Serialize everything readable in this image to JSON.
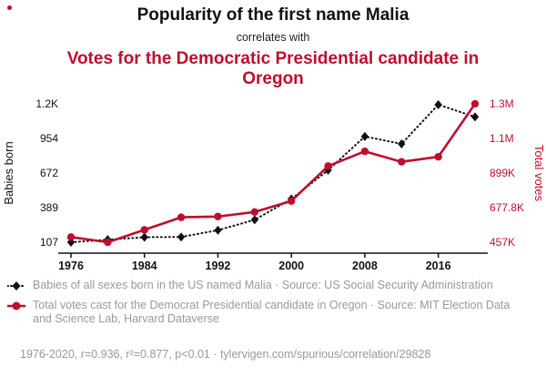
{
  "header": {
    "title": "Popularity of the first name Malia",
    "subtitle": "correlates with",
    "title2": "Votes for the Democratic Presidential candidate in Oregon"
  },
  "colors": {
    "accent": "#c00d2d",
    "series1": "#111111",
    "muted": "#999999"
  },
  "chart_data": {
    "type": "line",
    "x": [
      1976,
      1980,
      1984,
      1988,
      1992,
      1996,
      2000,
      2004,
      2008,
      2012,
      2016,
      2020
    ],
    "x_tick_labels": [
      "1976",
      "1984",
      "1992",
      "2000",
      "2008",
      "2016"
    ],
    "series": [
      {
        "name": "Babies of all sexes born in the US named Malia",
        "axis": "left",
        "color": "#111111",
        "style": "dotted",
        "marker": "diamond",
        "values": [
          107,
          128,
          148,
          150,
          205,
          290,
          460,
          695,
          970,
          910,
          1230,
          1130
        ]
      },
      {
        "name": "Total votes cast for the Democrat Presidential candidate in Oregon",
        "axis": "right",
        "color": "#c00d2d",
        "style": "solid",
        "marker": "circle",
        "values": [
          490000,
          457000,
          536000,
          616000,
          621000,
          650000,
          720000,
          943000,
          1037000,
          970000,
          1002000,
          1340000
        ]
      }
    ],
    "left_axis": {
      "label": "Babies born",
      "ticks": [
        "1.2K",
        "954",
        "672",
        "389",
        "107"
      ],
      "min": 107,
      "max": 1237
    },
    "right_axis": {
      "label": "Total votes",
      "ticks": [
        "1.3M",
        "1.1M",
        "899K",
        "677.8K",
        "457K"
      ],
      "min": 457000,
      "max": 1340200
    },
    "grid": false,
    "legend_position": "bottom"
  },
  "legend": [
    {
      "marker": "diamond",
      "text": "Babies of all sexes born in the US named Malia · Source: US Social Security Administration"
    },
    {
      "marker": "circle",
      "text": "Total votes cast for the Democrat Presidential candidate in Oregon · Source: MIT Election Data and Science Lab, Harvard Dataverse"
    }
  ],
  "footer": {
    "text": "1976-2020, r=0.936, r²=0.877, p<0.01 · tylervigen.com/spurious/correlation/29828"
  }
}
